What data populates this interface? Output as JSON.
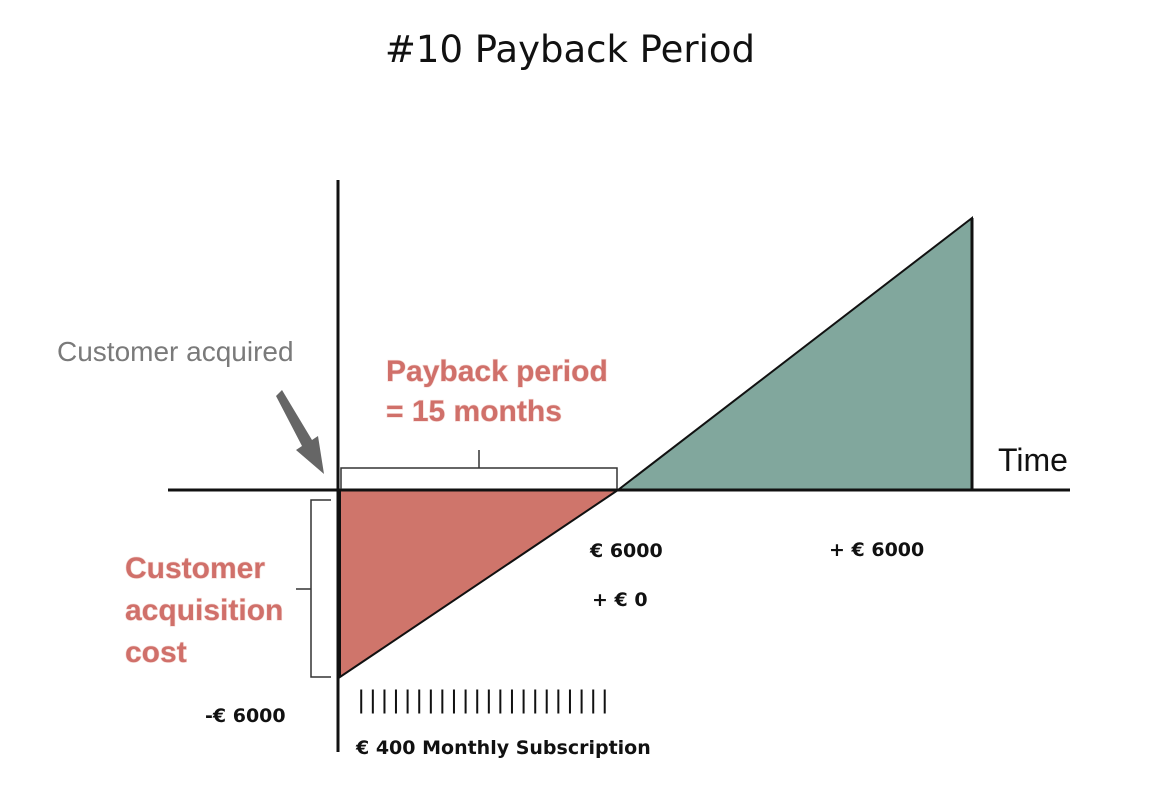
{
  "title": "#10 Payback Period",
  "labels": {
    "customer_acquired": "Customer acquired",
    "payback_line1": "Payback period",
    "payback_line2": "= 15 months",
    "cac_line1": "Customer",
    "cac_line2": "acquisition",
    "cac_line3": "cost",
    "time_axis": "Time",
    "neg_cost": "-€ 6000",
    "breakeven_amount": "€ 6000",
    "breakeven_profit": "+ € 0",
    "end_profit": "+ € 6000",
    "subscription_ticks": "||||||||||||||||||||||",
    "subscription_caption": "€ 400 Monthly Subscription"
  },
  "colors": {
    "loss": "#cf756b",
    "profit": "#81a79d",
    "axis": "#111111",
    "arrow": "#666666",
    "accent_text": "#d0706a"
  },
  "icons": {
    "pointer": "arrow-down-right-icon"
  }
}
